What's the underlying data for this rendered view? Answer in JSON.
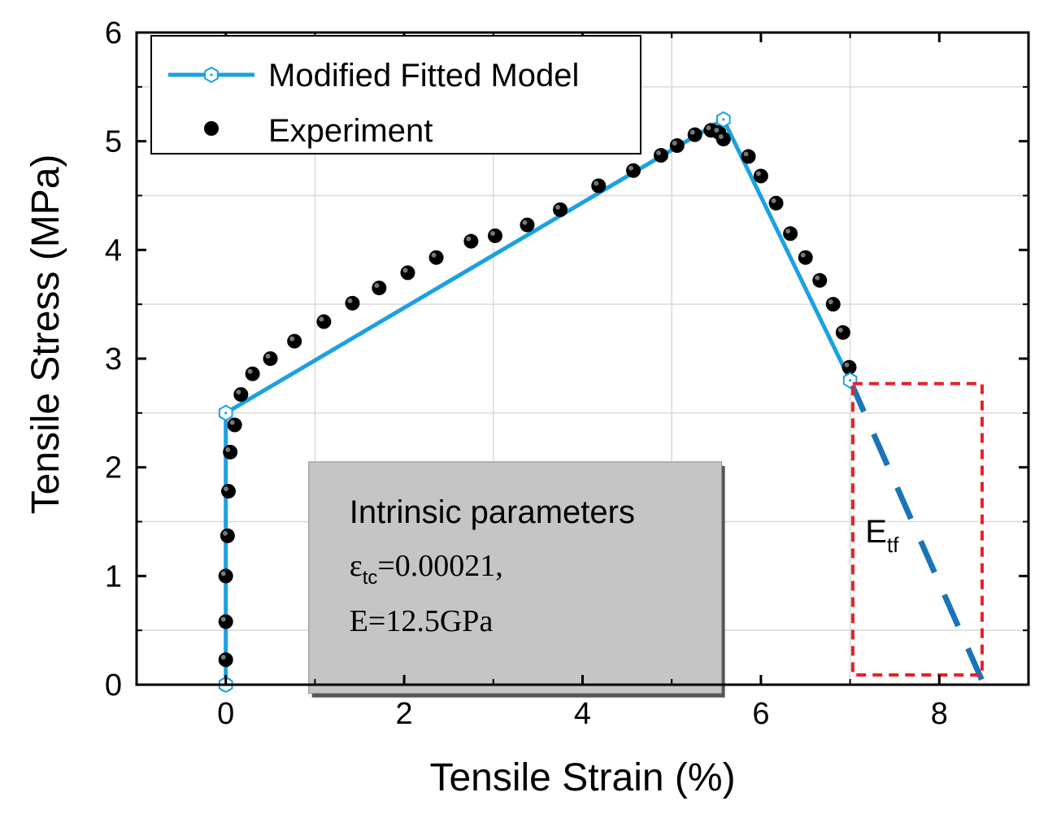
{
  "chart_data": {
    "type": "line",
    "xlabel": "Tensile Strain (%)",
    "ylabel": "Tensile Stress (MPa)",
    "xlim": [
      -1,
      9
    ],
    "ylim": [
      0,
      6
    ],
    "xticks": [
      0,
      2,
      4,
      6,
      8
    ],
    "yticks": [
      0,
      1,
      2,
      3,
      4,
      5,
      6
    ],
    "grid": true,
    "legend_position": "top-left",
    "series": [
      {
        "name": "Modified Fitted Model",
        "style": "line-with-hexagon-markers",
        "color": "#1ba1e2",
        "x": [
          0,
          0,
          5.58,
          7.0
        ],
        "y": [
          0,
          2.5,
          5.2,
          2.8
        ]
      },
      {
        "name": "Experiment",
        "style": "dots",
        "color": "#000000",
        "x": [
          0.0,
          0.0,
          0.0,
          0.0,
          0.02,
          0.03,
          0.05,
          0.1,
          0.17,
          0.3,
          0.5,
          0.77,
          1.1,
          1.42,
          1.72,
          2.04,
          2.36,
          2.75,
          3.02,
          3.38,
          3.75,
          4.18,
          4.57,
          4.88,
          5.06,
          5.26,
          5.44,
          5.53,
          5.58,
          5.86,
          6.0,
          6.17,
          6.33,
          6.5,
          6.66,
          6.81,
          6.92,
          6.99
        ],
        "y": [
          0.0,
          0.23,
          0.58,
          1.0,
          1.37,
          1.78,
          2.14,
          2.39,
          2.67,
          2.86,
          3.0,
          3.16,
          3.34,
          3.51,
          3.65,
          3.79,
          3.93,
          4.08,
          4.13,
          4.23,
          4.37,
          4.59,
          4.73,
          4.87,
          4.96,
          5.06,
          5.1,
          5.08,
          5.02,
          4.86,
          4.68,
          4.43,
          4.15,
          3.93,
          3.72,
          3.5,
          3.24,
          2.92
        ]
      },
      {
        "name": "",
        "style": "dashed-extension",
        "color": "#1a74b8",
        "x": [
          7.0,
          8.5
        ],
        "y": [
          2.8,
          0.0
        ]
      }
    ],
    "annotation_box": {
      "title": "Intrinsic parameters",
      "line1_symbol": "ε",
      "line1_sub": "tc",
      "line1_rest": "=0.00021,",
      "line2": "E=12.5GPa"
    },
    "highlight_label": {
      "main": "E",
      "sub": "tf",
      "border_color": "#e8202a"
    }
  }
}
